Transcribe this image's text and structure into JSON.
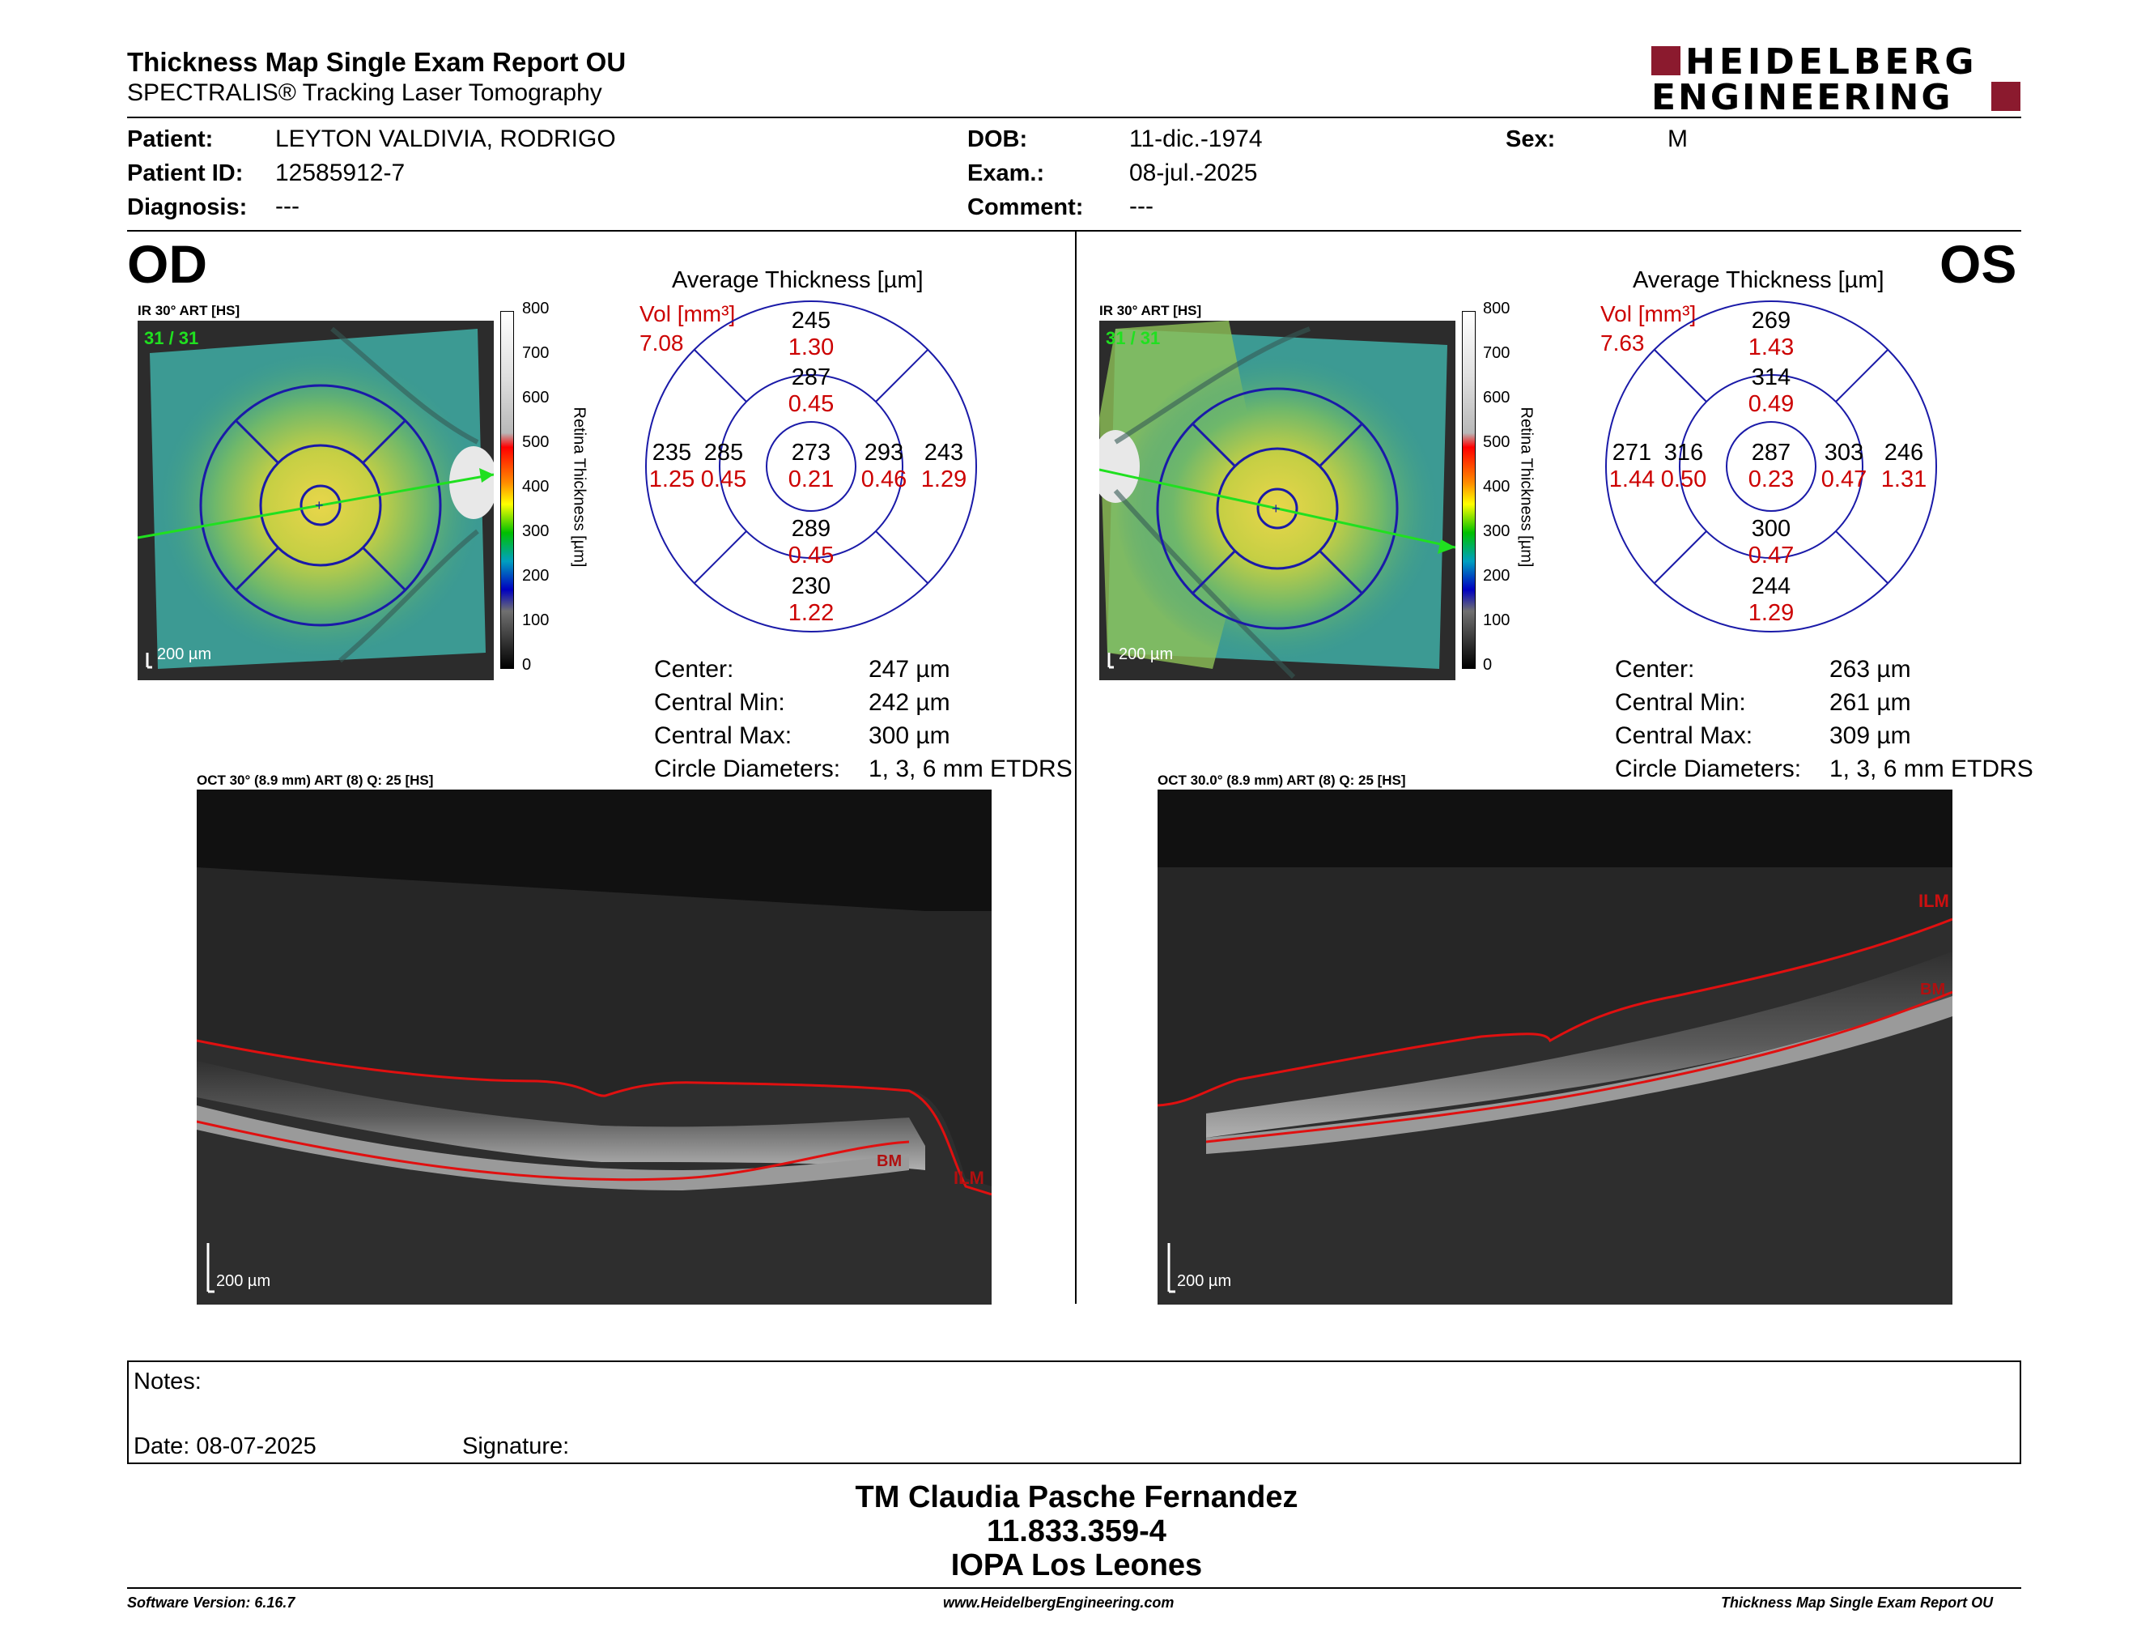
{
  "report": {
    "title": "Thickness Map Single Exam Report OU",
    "subtitle": "SPECTRALIS® Tracking Laser Tomography"
  },
  "brand": {
    "line1": "HEIDELBERG",
    "line2": "ENGINEERING",
    "color": "#8b1a2e"
  },
  "patient": {
    "patient_label": "Patient:",
    "patient_value": "LEYTON VALDIVIA, RODRIGO",
    "id_label": "Patient ID:",
    "id_value": "12585912-7",
    "diagnosis_label": "Diagnosis:",
    "diagnosis_value": "---",
    "dob_label": "DOB:",
    "dob_value": "11-dic.-1974",
    "exam_label": "Exam.:",
    "exam_value": "08-jul.-2025",
    "comment_label": "Comment:",
    "comment_value": "---",
    "sex_label": "Sex:",
    "sex_value": "M"
  },
  "od": {
    "eye": "OD",
    "ir_label": "IR 30° ART [HS]",
    "frames": "31 / 31",
    "scale_bar": "200 µm",
    "oct_label": "OCT 30° (8.9 mm) ART (8) Q: 25 [HS]",
    "oct_scale": "200 µm",
    "layers": {
      "ilm": "ILM",
      "bm": "BM"
    },
    "avg_title": "Average Thickness [µm]",
    "vol_label": "Vol [mm³]",
    "vol_total": "7.08",
    "sectors": {
      "outer_sup": {
        "t": "245",
        "v": "1.30"
      },
      "inner_sup": {
        "t": "287",
        "v": "0.45"
      },
      "outer_left": {
        "t": "235",
        "v": "1.25"
      },
      "inner_left": {
        "t": "285",
        "v": "0.45"
      },
      "center": {
        "t": "273",
        "v": "0.21"
      },
      "inner_right": {
        "t": "293",
        "v": "0.46"
      },
      "outer_right": {
        "t": "243",
        "v": "1.29"
      },
      "inner_inf": {
        "t": "289",
        "v": "0.45"
      },
      "outer_inf": {
        "t": "230",
        "v": "1.22"
      }
    },
    "stats": [
      {
        "label": "Center:",
        "value": "247 µm"
      },
      {
        "label": "Central Min:",
        "value": "242 µm"
      },
      {
        "label": "Central Max:",
        "value": "300 µm"
      },
      {
        "label": "Circle Diameters:",
        "value": "1, 3, 6 mm ETDRS"
      }
    ]
  },
  "os": {
    "eye": "OS",
    "ir_label": "IR 30° ART [HS]",
    "frames": "31 / 31",
    "scale_bar": "200 µm",
    "oct_label": "OCT 30.0° (8.9 mm) ART (8) Q: 25 [HS]",
    "oct_scale": "200 µm",
    "layers": {
      "ilm": "ILM",
      "bm": "BM"
    },
    "avg_title": "Average Thickness [µm]",
    "vol_label": "Vol [mm³]",
    "vol_total": "7.63",
    "sectors": {
      "outer_sup": {
        "t": "269",
        "v": "1.43"
      },
      "inner_sup": {
        "t": "314",
        "v": "0.49"
      },
      "outer_left": {
        "t": "271",
        "v": "1.44"
      },
      "inner_left": {
        "t": "316",
        "v": "0.50"
      },
      "center": {
        "t": "287",
        "v": "0.23"
      },
      "inner_right": {
        "t": "303",
        "v": "0.47"
      },
      "outer_right": {
        "t": "246",
        "v": "1.31"
      },
      "inner_inf": {
        "t": "300",
        "v": "0.47"
      },
      "outer_inf": {
        "t": "244",
        "v": "1.29"
      }
    },
    "stats": [
      {
        "label": "Center:",
        "value": "263 µm"
      },
      {
        "label": "Central Min:",
        "value": "261 µm"
      },
      {
        "label": "Central Max:",
        "value": "309 µm"
      },
      {
        "label": "Circle Diameters:",
        "value": "1, 3, 6 mm ETDRS"
      }
    ]
  },
  "colorbar": {
    "ticks": [
      "800",
      "700",
      "600",
      "500",
      "400",
      "300",
      "200",
      "100",
      "0"
    ],
    "title": "Retina Thickness [µm]"
  },
  "notes": {
    "notes_label": "Notes:",
    "date_label": "Date: 08-07-2025",
    "signature_label": "Signature:"
  },
  "signoff": {
    "name": "TM Claudia Pasche Fernandez",
    "id": "11.833.359-4",
    "org": "IOPA Los Leones"
  },
  "footer": {
    "software": "Software Version: 6.16.7",
    "website": "www.HeidelbergEngineering.com",
    "report_name": "Thickness Map Single Exam Report OU"
  }
}
